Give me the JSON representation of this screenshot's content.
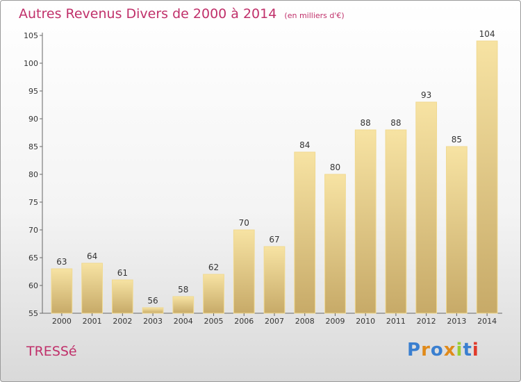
{
  "header": {
    "title": "Autres Revenus Divers de 2000 à 2014",
    "unit": "(en milliers d'€)"
  },
  "footer": {
    "place": "TRESSé",
    "logo_text": "Proxiti"
  },
  "colors": {
    "title": "#c0306a",
    "bar_top": "#f7e3a3",
    "bar_bottom": "#c7aa68",
    "logo": [
      "#3a7fd0",
      "#e08a1a",
      "#3a7fd0",
      "#e08a1a",
      "#9acd32",
      "#3a7fd0",
      "#e03a2a"
    ]
  },
  "chart_data": {
    "type": "bar",
    "title": "Autres Revenus Divers de 2000 à 2014",
    "subtitle": "(en milliers d'€)",
    "categories": [
      "2000",
      "2001",
      "2002",
      "2003",
      "2004",
      "2005",
      "2006",
      "2007",
      "2008",
      "2009",
      "2010",
      "2011",
      "2012",
      "2013",
      "2014"
    ],
    "values": [
      63,
      64,
      61,
      56,
      58,
      62,
      70,
      67,
      84,
      80,
      88,
      88,
      93,
      85,
      104
    ],
    "ylim": [
      55,
      105
    ],
    "yticks": [
      55,
      60,
      65,
      70,
      75,
      80,
      85,
      90,
      95,
      100,
      105
    ],
    "grid": "none",
    "legend": "none"
  }
}
